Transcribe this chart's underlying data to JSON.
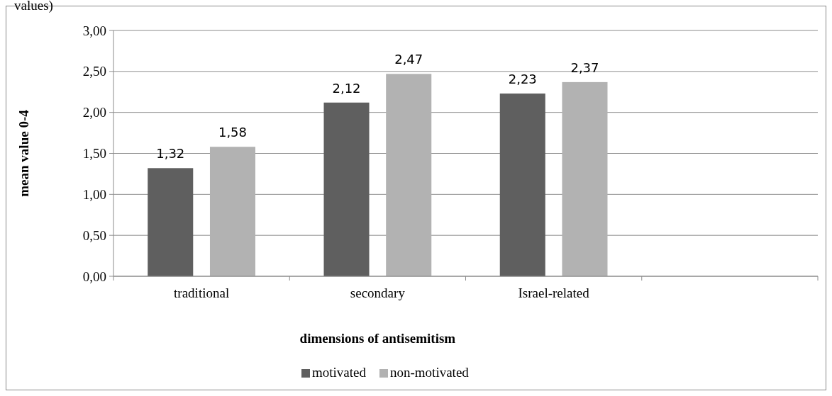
{
  "chart_data": {
    "type": "bar",
    "title": "values)",
    "xlabel": "dimensions of antisemitism",
    "ylabel": "mean value 0-4",
    "categories": [
      "traditional",
      "secondary",
      "Israel-related",
      null
    ],
    "series": [
      {
        "name": "motivated",
        "color": "#5f5f5f",
        "values": [
          1.32,
          2.12,
          2.23,
          null
        ]
      },
      {
        "name": "non-motivated",
        "color": "#b2b2b2",
        "values": [
          1.58,
          2.47,
          2.37,
          null
        ]
      }
    ],
    "ylim": [
      0,
      3
    ],
    "yticks": [
      {
        "value": 0,
        "label": "0,00"
      },
      {
        "value": 0.5,
        "label": "0,50"
      },
      {
        "value": 1,
        "label": "1,00"
      },
      {
        "value": 1.5,
        "label": "1,50"
      },
      {
        "value": 2,
        "label": "2,00"
      },
      {
        "value": 2.5,
        "label": "2,50"
      },
      {
        "value": 3,
        "label": "3,00"
      }
    ],
    "grid": "y",
    "legend": "bottom",
    "value_labels": [
      [
        "1,32",
        "2,12",
        "2,23",
        null
      ],
      [
        "1,58",
        "2,47",
        "2,37",
        null
      ]
    ]
  }
}
